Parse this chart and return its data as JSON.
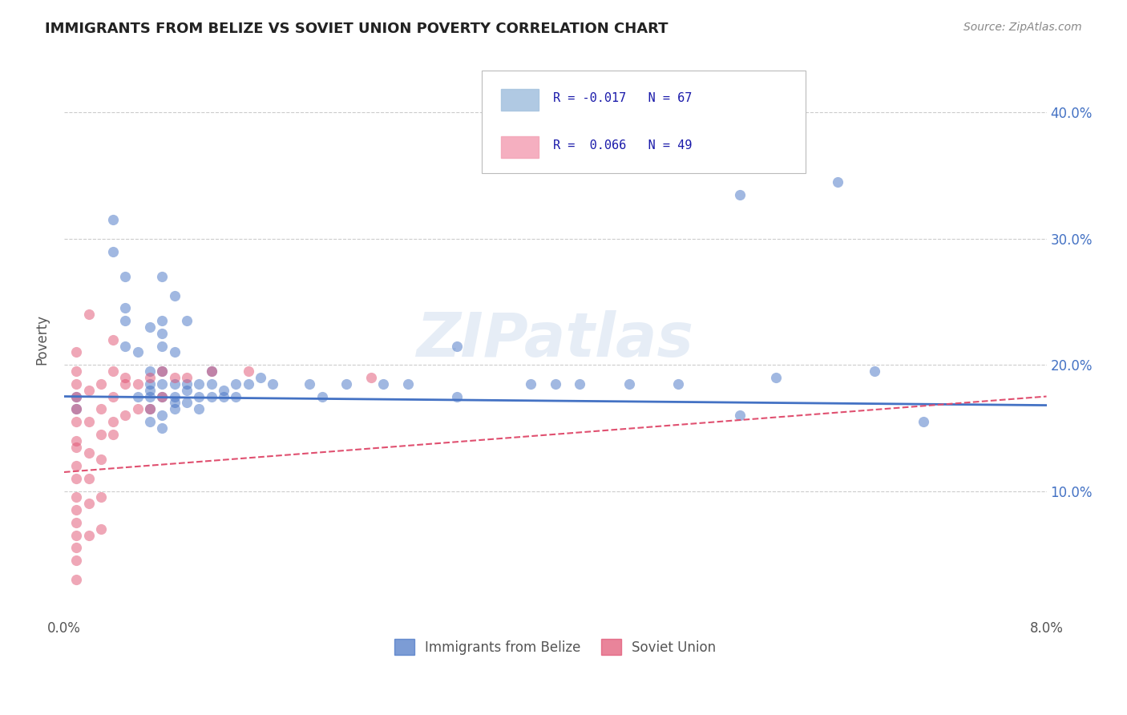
{
  "title": "IMMIGRANTS FROM BELIZE VS SOVIET UNION POVERTY CORRELATION CHART",
  "source": "Source: ZipAtlas.com",
  "ylabel": "Poverty",
  "watermark": "ZIPatlas",
  "legend_entries": [
    {
      "label": "Immigrants from Belize",
      "R": -0.017,
      "N": 67,
      "color": "#a8c4e0"
    },
    {
      "label": "Soviet Union",
      "R": 0.066,
      "N": 49,
      "color": "#f4a7b9"
    }
  ],
  "y_ticks": [
    0.1,
    0.2,
    0.3,
    0.4
  ],
  "y_tick_labels": [
    "10.0%",
    "20.0%",
    "30.0%",
    "40.0%"
  ],
  "x_range": [
    0.0,
    0.08
  ],
  "y_range": [
    0.0,
    0.44
  ],
  "x_tick_labels": [
    "0.0%",
    "8.0%"
  ],
  "belize_scatter": [
    [
      0.001,
      0.175
    ],
    [
      0.001,
      0.165
    ],
    [
      0.004,
      0.315
    ],
    [
      0.004,
      0.29
    ],
    [
      0.005,
      0.27
    ],
    [
      0.005,
      0.245
    ],
    [
      0.005,
      0.235
    ],
    [
      0.005,
      0.215
    ],
    [
      0.006,
      0.175
    ],
    [
      0.006,
      0.21
    ],
    [
      0.007,
      0.23
    ],
    [
      0.007,
      0.195
    ],
    [
      0.007,
      0.185
    ],
    [
      0.007,
      0.18
    ],
    [
      0.007,
      0.175
    ],
    [
      0.007,
      0.165
    ],
    [
      0.007,
      0.155
    ],
    [
      0.008,
      0.27
    ],
    [
      0.008,
      0.235
    ],
    [
      0.008,
      0.225
    ],
    [
      0.008,
      0.215
    ],
    [
      0.008,
      0.195
    ],
    [
      0.008,
      0.185
    ],
    [
      0.008,
      0.175
    ],
    [
      0.008,
      0.16
    ],
    [
      0.008,
      0.15
    ],
    [
      0.009,
      0.255
    ],
    [
      0.009,
      0.21
    ],
    [
      0.009,
      0.185
    ],
    [
      0.009,
      0.175
    ],
    [
      0.009,
      0.17
    ],
    [
      0.009,
      0.165
    ],
    [
      0.01,
      0.235
    ],
    [
      0.01,
      0.185
    ],
    [
      0.01,
      0.18
    ],
    [
      0.01,
      0.17
    ],
    [
      0.011,
      0.185
    ],
    [
      0.011,
      0.175
    ],
    [
      0.011,
      0.165
    ],
    [
      0.012,
      0.195
    ],
    [
      0.012,
      0.185
    ],
    [
      0.012,
      0.175
    ],
    [
      0.013,
      0.18
    ],
    [
      0.013,
      0.175
    ],
    [
      0.014,
      0.185
    ],
    [
      0.014,
      0.175
    ],
    [
      0.015,
      0.185
    ],
    [
      0.016,
      0.19
    ],
    [
      0.017,
      0.185
    ],
    [
      0.02,
      0.185
    ],
    [
      0.021,
      0.175
    ],
    [
      0.023,
      0.185
    ],
    [
      0.026,
      0.185
    ],
    [
      0.028,
      0.185
    ],
    [
      0.032,
      0.175
    ],
    [
      0.038,
      0.185
    ],
    [
      0.042,
      0.185
    ],
    [
      0.046,
      0.185
    ],
    [
      0.05,
      0.185
    ],
    [
      0.055,
      0.335
    ],
    [
      0.058,
      0.19
    ],
    [
      0.063,
      0.345
    ],
    [
      0.066,
      0.195
    ],
    [
      0.032,
      0.215
    ],
    [
      0.04,
      0.185
    ],
    [
      0.055,
      0.16
    ],
    [
      0.07,
      0.155
    ]
  ],
  "soviet_scatter": [
    [
      0.001,
      0.21
    ],
    [
      0.001,
      0.195
    ],
    [
      0.001,
      0.185
    ],
    [
      0.001,
      0.175
    ],
    [
      0.001,
      0.165
    ],
    [
      0.001,
      0.155
    ],
    [
      0.001,
      0.14
    ],
    [
      0.001,
      0.135
    ],
    [
      0.001,
      0.12
    ],
    [
      0.001,
      0.11
    ],
    [
      0.001,
      0.095
    ],
    [
      0.001,
      0.085
    ],
    [
      0.001,
      0.075
    ],
    [
      0.001,
      0.065
    ],
    [
      0.001,
      0.055
    ],
    [
      0.001,
      0.045
    ],
    [
      0.002,
      0.24
    ],
    [
      0.002,
      0.18
    ],
    [
      0.002,
      0.155
    ],
    [
      0.002,
      0.13
    ],
    [
      0.002,
      0.11
    ],
    [
      0.002,
      0.09
    ],
    [
      0.003,
      0.185
    ],
    [
      0.003,
      0.165
    ],
    [
      0.003,
      0.145
    ],
    [
      0.003,
      0.125
    ],
    [
      0.004,
      0.195
    ],
    [
      0.004,
      0.175
    ],
    [
      0.004,
      0.155
    ],
    [
      0.004,
      0.145
    ],
    [
      0.005,
      0.19
    ],
    [
      0.005,
      0.16
    ],
    [
      0.005,
      0.185
    ],
    [
      0.006,
      0.185
    ],
    [
      0.006,
      0.165
    ],
    [
      0.007,
      0.19
    ],
    [
      0.007,
      0.165
    ],
    [
      0.008,
      0.195
    ],
    [
      0.008,
      0.175
    ],
    [
      0.009,
      0.19
    ],
    [
      0.01,
      0.19
    ],
    [
      0.012,
      0.195
    ],
    [
      0.015,
      0.195
    ],
    [
      0.025,
      0.19
    ],
    [
      0.004,
      0.22
    ],
    [
      0.003,
      0.095
    ],
    [
      0.003,
      0.07
    ],
    [
      0.002,
      0.065
    ],
    [
      0.001,
      0.03
    ]
  ],
  "belize_line_color": "#4472c4",
  "soviet_line_color": "#e05070",
  "grid_color": "#cccccc",
  "background_color": "#ffffff",
  "title_color": "#222222",
  "legend_text_color": "#1a1aaa",
  "scatter_alpha": 0.5,
  "scatter_size": 90
}
